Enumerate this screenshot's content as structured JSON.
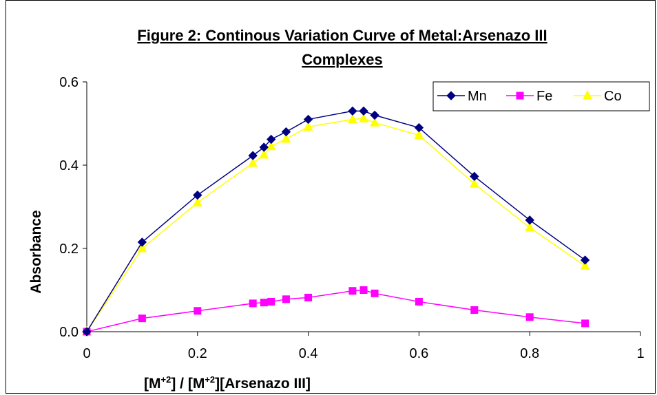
{
  "chart_data": {
    "type": "line",
    "title": "Figure 2: Continous Variation Curve of Metal:Arsenazo III Complexes",
    "title_lines": [
      "Figure 2: Continous Variation Curve of Metal:Arsenazo III",
      "Complexes"
    ],
    "xlabel": "[M+2] / [M+2][Arsenazo III]",
    "xlabel_parts": [
      "[M",
      "+2",
      "] / [M",
      "+2",
      "][Arsenazo III]"
    ],
    "ylabel": "Absorbance",
    "xlim": [
      0,
      1
    ],
    "ylim": [
      0,
      0.6
    ],
    "x_ticks": [
      "0",
      "0.2",
      "0.4",
      "0.6",
      "0.8",
      "1"
    ],
    "y_ticks": [
      "0.0",
      "0.2",
      "0.4",
      "0.6"
    ],
    "grid": false,
    "legend_position": "top-right",
    "x": [
      0,
      0.1,
      0.2,
      0.3,
      0.32,
      0.333,
      0.36,
      0.4,
      0.48,
      0.5,
      0.52,
      0.6,
      0.7,
      0.8,
      0.9
    ],
    "series": [
      {
        "name": "Mn",
        "color": "#000080",
        "marker": "diamond",
        "values": [
          0,
          0.215,
          0.328,
          0.423,
          0.443,
          0.462,
          0.48,
          0.51,
          0.53,
          0.53,
          0.52,
          0.49,
          0.373,
          0.268,
          0.172
        ]
      },
      {
        "name": "Fe",
        "color": "#ff00ff",
        "marker": "square",
        "values": [
          0,
          0.032,
          0.05,
          0.068,
          0.07,
          0.072,
          0.078,
          0.082,
          0.098,
          0.1,
          0.092,
          0.072,
          0.052,
          0.035,
          0.02
        ]
      },
      {
        "name": "Co",
        "color": "#ffff00",
        "marker": "triangle",
        "values": [
          0,
          0.2,
          0.31,
          0.405,
          0.425,
          0.445,
          0.463,
          0.492,
          0.51,
          0.512,
          0.502,
          0.472,
          0.355,
          0.25,
          0.158
        ]
      }
    ]
  }
}
